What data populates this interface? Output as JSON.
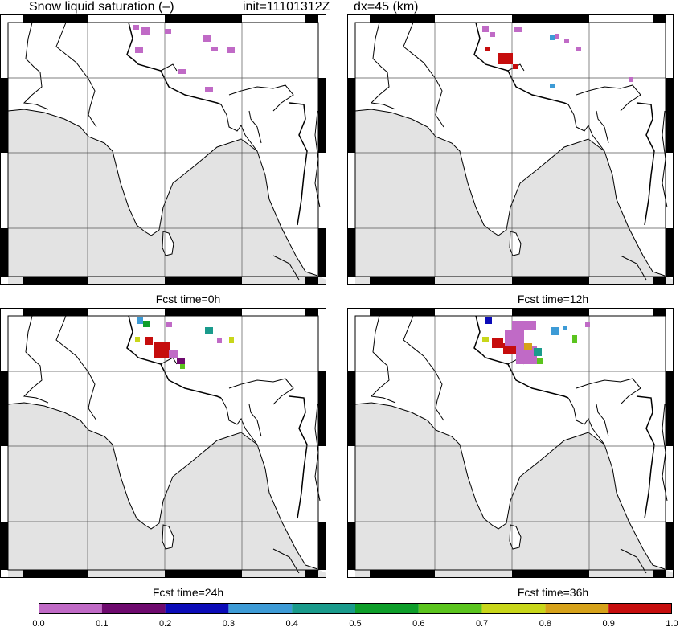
{
  "header": {
    "variable": "Snow liquid saturation (–)",
    "init": "init=11101312Z",
    "resolution": "dx=45 (km)"
  },
  "panels": [
    {
      "id": "p0",
      "caption": "Fcst time=0h"
    },
    {
      "id": "p12",
      "caption": "Fcst time=12h"
    },
    {
      "id": "p24",
      "caption": "Fcst time=24h"
    },
    {
      "id": "p36",
      "caption": "Fcst time=36h"
    }
  ],
  "colorbar": {
    "ticks": [
      "0.0",
      "0.1",
      "0.2",
      "0.3",
      "0.4",
      "0.5",
      "0.6",
      "0.7",
      "0.8",
      "0.9",
      "1.0"
    ],
    "colors": [
      "#c06ac6",
      "#6e0a6e",
      "#0b0bb8",
      "#3d9bd6",
      "#1a9b8c",
      "#0e9e2a",
      "#5bc41e",
      "#c8d61a",
      "#d6a21a",
      "#c60d0d"
    ]
  },
  "colors": {
    "ocean": "#e3e3e3",
    "land": "#ffffff",
    "border": "#000000",
    "grid": "#555555"
  }
}
